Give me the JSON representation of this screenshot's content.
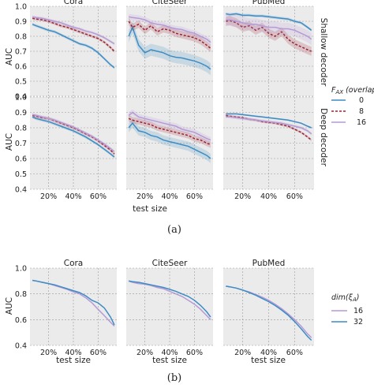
{
  "colors": {
    "panel_bg": "#ebebeb",
    "grid": "#9a9a9a",
    "series_0": "#3d8cc4",
    "series_8": "#9b2335",
    "series_16": "#b59ad6"
  },
  "figure_a": {
    "caption": "(a)",
    "legend_title": "F_AX (overlap)",
    "row_labels": [
      "Shallow decoder",
      "Deep decoder"
    ]
  },
  "figure_b": {
    "caption": "(b)",
    "legend_title": "dim(ξ_A)"
  },
  "chart_data": [
    {
      "type": "line",
      "panel": "a-shallow-cora",
      "title": "Cora",
      "row_label": "Shallow decoder",
      "xlabel": "",
      "ylabel": "AUC",
      "xlim": [
        0.05,
        0.75
      ],
      "ylim": [
        0.4,
        1.0
      ],
      "x": [
        0.07,
        0.1,
        0.15,
        0.2,
        0.25,
        0.3,
        0.35,
        0.4,
        0.45,
        0.5,
        0.55,
        0.6,
        0.65,
        0.7,
        0.73
      ],
      "series": [
        {
          "name": "0",
          "values": [
            0.88,
            0.87,
            0.855,
            0.84,
            0.83,
            0.81,
            0.79,
            0.77,
            0.75,
            0.74,
            0.72,
            0.69,
            0.65,
            0.61,
            0.59
          ],
          "band": 0.01
        },
        {
          "name": "8",
          "values": [
            0.92,
            0.915,
            0.91,
            0.9,
            0.885,
            0.87,
            0.86,
            0.845,
            0.83,
            0.815,
            0.8,
            0.785,
            0.76,
            0.725,
            0.7
          ],
          "band": 0.01
        },
        {
          "name": "16",
          "values": [
            0.93,
            0.925,
            0.92,
            0.91,
            0.9,
            0.89,
            0.875,
            0.86,
            0.85,
            0.835,
            0.825,
            0.81,
            0.79,
            0.765,
            0.75
          ],
          "band": 0.01
        }
      ]
    },
    {
      "type": "line",
      "panel": "a-shallow-citeseer",
      "title": "CiteSeer",
      "xlabel": "",
      "ylabel": "",
      "xlim": [
        0.05,
        0.75
      ],
      "ylim": [
        0.4,
        1.0
      ],
      "x": [
        0.07,
        0.1,
        0.15,
        0.2,
        0.25,
        0.3,
        0.35,
        0.4,
        0.45,
        0.5,
        0.55,
        0.6,
        0.65,
        0.7,
        0.73
      ],
      "series": [
        {
          "name": "0",
          "values": [
            0.8,
            0.86,
            0.74,
            0.69,
            0.71,
            0.7,
            0.69,
            0.67,
            0.66,
            0.655,
            0.645,
            0.635,
            0.62,
            0.6,
            0.58
          ],
          "band": 0.04
        },
        {
          "name": "8",
          "values": [
            0.9,
            0.86,
            0.88,
            0.84,
            0.87,
            0.83,
            0.85,
            0.84,
            0.82,
            0.81,
            0.8,
            0.79,
            0.77,
            0.74,
            0.72
          ],
          "band": 0.025
        },
        {
          "name": "16",
          "values": [
            0.93,
            0.925,
            0.92,
            0.91,
            0.89,
            0.88,
            0.875,
            0.86,
            0.85,
            0.845,
            0.83,
            0.82,
            0.8,
            0.78,
            0.76
          ],
          "band": 0.02
        }
      ]
    },
    {
      "type": "line",
      "panel": "a-shallow-pubmed",
      "title": "PubMed",
      "xlabel": "",
      "ylabel": "",
      "xlim": [
        0.05,
        0.75
      ],
      "ylim": [
        0.4,
        1.0
      ],
      "x": [
        0.07,
        0.1,
        0.15,
        0.2,
        0.25,
        0.3,
        0.35,
        0.4,
        0.45,
        0.5,
        0.55,
        0.6,
        0.65,
        0.7,
        0.73
      ],
      "series": [
        {
          "name": "0",
          "values": [
            0.95,
            0.945,
            0.95,
            0.94,
            0.94,
            0.935,
            0.935,
            0.93,
            0.925,
            0.92,
            0.915,
            0.9,
            0.89,
            0.86,
            0.84
          ],
          "band": 0.01
        },
        {
          "name": "8",
          "values": [
            0.9,
            0.905,
            0.89,
            0.86,
            0.87,
            0.84,
            0.86,
            0.82,
            0.8,
            0.83,
            0.78,
            0.75,
            0.73,
            0.71,
            0.7
          ],
          "band": 0.03
        },
        {
          "name": "16",
          "values": [
            0.91,
            0.91,
            0.9,
            0.89,
            0.88,
            0.88,
            0.87,
            0.86,
            0.86,
            0.85,
            0.85,
            0.84,
            0.82,
            0.8,
            0.78
          ],
          "band": 0.04
        }
      ]
    },
    {
      "type": "line",
      "panel": "a-deep-cora",
      "title": "",
      "row_label": "Deep decoder",
      "xlabel": "test size",
      "ylabel": "AUC",
      "xlim": [
        0.05,
        0.75
      ],
      "ylim": [
        0.4,
        1.0
      ],
      "xticklabels": [
        "20%",
        "40%",
        "60%"
      ],
      "x": [
        0.07,
        0.1,
        0.15,
        0.2,
        0.25,
        0.3,
        0.35,
        0.4,
        0.45,
        0.5,
        0.55,
        0.6,
        0.65,
        0.7,
        0.73
      ],
      "series": [
        {
          "name": "0",
          "values": [
            0.87,
            0.86,
            0.85,
            0.84,
            0.825,
            0.81,
            0.795,
            0.78,
            0.76,
            0.74,
            0.715,
            0.69,
            0.66,
            0.63,
            0.61
          ],
          "band": 0.01
        },
        {
          "name": "8",
          "values": [
            0.88,
            0.875,
            0.865,
            0.86,
            0.845,
            0.83,
            0.815,
            0.8,
            0.78,
            0.76,
            0.74,
            0.715,
            0.685,
            0.655,
            0.63
          ],
          "band": 0.01
        },
        {
          "name": "16",
          "values": [
            0.885,
            0.88,
            0.87,
            0.86,
            0.85,
            0.835,
            0.82,
            0.805,
            0.785,
            0.765,
            0.745,
            0.72,
            0.695,
            0.665,
            0.645
          ],
          "band": 0.01
        }
      ]
    },
    {
      "type": "line",
      "panel": "a-deep-citeseer",
      "title": "",
      "xlabel": "test size",
      "ylabel": "",
      "xlim": [
        0.05,
        0.75
      ],
      "ylim": [
        0.4,
        1.0
      ],
      "xticklabels": [
        "20%",
        "40%",
        "60%"
      ],
      "x": [
        0.07,
        0.1,
        0.15,
        0.2,
        0.25,
        0.3,
        0.35,
        0.4,
        0.45,
        0.5,
        0.55,
        0.6,
        0.65,
        0.7,
        0.73
      ],
      "series": [
        {
          "name": "0",
          "values": [
            0.8,
            0.83,
            0.78,
            0.77,
            0.75,
            0.74,
            0.72,
            0.71,
            0.7,
            0.69,
            0.68,
            0.66,
            0.64,
            0.62,
            0.6
          ],
          "band": 0.03
        },
        {
          "name": "8",
          "values": [
            0.86,
            0.85,
            0.84,
            0.83,
            0.82,
            0.8,
            0.79,
            0.78,
            0.77,
            0.76,
            0.75,
            0.73,
            0.72,
            0.7,
            0.69
          ],
          "band": 0.02
        },
        {
          "name": "16",
          "values": [
            0.88,
            0.9,
            0.87,
            0.86,
            0.85,
            0.84,
            0.83,
            0.82,
            0.81,
            0.79,
            0.78,
            0.77,
            0.75,
            0.73,
            0.72
          ],
          "band": 0.02
        }
      ]
    },
    {
      "type": "line",
      "panel": "a-deep-pubmed",
      "title": "",
      "xlabel": "",
      "ylabel": "",
      "xlim": [
        0.05,
        0.75
      ],
      "ylim": [
        0.4,
        1.0
      ],
      "xticklabels": [
        "20%",
        "40%",
        "60%"
      ],
      "x": [
        0.07,
        0.1,
        0.15,
        0.2,
        0.25,
        0.3,
        0.35,
        0.4,
        0.45,
        0.5,
        0.55,
        0.6,
        0.65,
        0.7,
        0.73
      ],
      "series": [
        {
          "name": "0",
          "values": [
            0.89,
            0.89,
            0.89,
            0.885,
            0.88,
            0.875,
            0.87,
            0.865,
            0.86,
            0.855,
            0.85,
            0.84,
            0.83,
            0.81,
            0.8
          ],
          "band": 0.005
        },
        {
          "name": "8",
          "values": [
            0.88,
            0.875,
            0.87,
            0.865,
            0.855,
            0.85,
            0.84,
            0.835,
            0.83,
            0.82,
            0.81,
            0.79,
            0.77,
            0.74,
            0.72
          ],
          "band": 0.008
        },
        {
          "name": "16",
          "values": [
            0.87,
            0.87,
            0.865,
            0.86,
            0.855,
            0.85,
            0.845,
            0.84,
            0.835,
            0.83,
            0.82,
            0.81,
            0.8,
            0.78,
            0.76
          ],
          "band": 0.01
        }
      ]
    },
    {
      "type": "line",
      "panel": "b-cora",
      "title": "Cora",
      "xlabel": "test size",
      "ylabel": "AUC",
      "xlim": [
        0.05,
        0.75
      ],
      "ylim": [
        0.4,
        1.0
      ],
      "xticklabels": [
        "20%",
        "40%",
        "60%"
      ],
      "x": [
        0.07,
        0.1,
        0.15,
        0.2,
        0.25,
        0.3,
        0.35,
        0.4,
        0.45,
        0.5,
        0.55,
        0.6,
        0.65,
        0.7,
        0.73
      ],
      "series": [
        {
          "name": "16",
          "values": [
            0.905,
            0.9,
            0.89,
            0.88,
            0.865,
            0.85,
            0.835,
            0.815,
            0.8,
            0.77,
            0.73,
            0.68,
            0.63,
            0.58,
            0.55
          ]
        },
        {
          "name": "32",
          "values": [
            0.905,
            0.9,
            0.89,
            0.88,
            0.87,
            0.855,
            0.84,
            0.825,
            0.81,
            0.785,
            0.75,
            0.73,
            0.69,
            0.62,
            0.56
          ]
        }
      ]
    },
    {
      "type": "line",
      "panel": "b-citeseer",
      "title": "CiteSeer",
      "xlabel": "test size",
      "ylabel": "",
      "xlim": [
        0.05,
        0.75
      ],
      "ylim": [
        0.4,
        1.0
      ],
      "xticklabels": [
        "20%",
        "40%",
        "60%"
      ],
      "x": [
        0.07,
        0.1,
        0.15,
        0.2,
        0.25,
        0.3,
        0.35,
        0.4,
        0.45,
        0.5,
        0.55,
        0.6,
        0.65,
        0.7,
        0.73
      ],
      "series": [
        {
          "name": "16",
          "values": [
            0.9,
            0.89,
            0.88,
            0.875,
            0.865,
            0.85,
            0.84,
            0.82,
            0.8,
            0.78,
            0.75,
            0.72,
            0.68,
            0.63,
            0.6
          ]
        },
        {
          "name": "32",
          "values": [
            0.9,
            0.895,
            0.89,
            0.88,
            0.87,
            0.86,
            0.85,
            0.835,
            0.82,
            0.8,
            0.78,
            0.75,
            0.71,
            0.66,
            0.62
          ]
        }
      ]
    },
    {
      "type": "line",
      "panel": "b-pubmed",
      "title": "PubMed",
      "xlabel": "test size",
      "ylabel": "",
      "xlim": [
        0.05,
        0.75
      ],
      "ylim": [
        0.4,
        1.0
      ],
      "xticklabels": [
        "20%",
        "40%",
        "60%"
      ],
      "x": [
        0.07,
        0.1,
        0.15,
        0.2,
        0.25,
        0.3,
        0.35,
        0.4,
        0.45,
        0.5,
        0.55,
        0.6,
        0.65,
        0.7,
        0.73
      ],
      "series": [
        {
          "name": "16",
          "values": [
            0.86,
            0.855,
            0.845,
            0.83,
            0.815,
            0.795,
            0.775,
            0.75,
            0.72,
            0.685,
            0.645,
            0.6,
            0.55,
            0.49,
            0.46
          ]
        },
        {
          "name": "32",
          "values": [
            0.86,
            0.855,
            0.845,
            0.83,
            0.81,
            0.79,
            0.765,
            0.74,
            0.71,
            0.675,
            0.635,
            0.585,
            0.53,
            0.47,
            0.44
          ]
        }
      ]
    }
  ]
}
